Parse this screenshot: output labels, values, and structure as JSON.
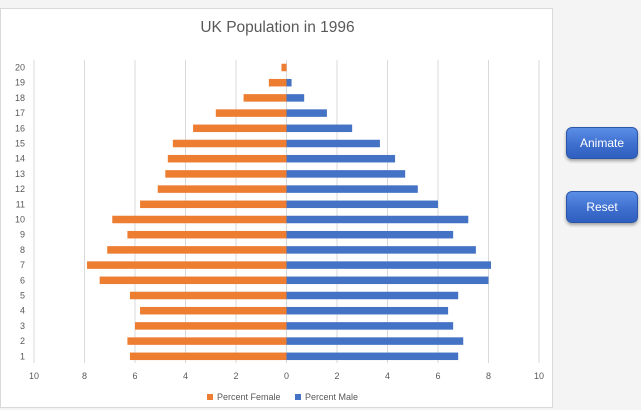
{
  "buttons": {
    "animate_label": "Animate",
    "reset_label": "Reset"
  },
  "colors": {
    "female": "#ed7d31",
    "male": "#4472c4",
    "grid": "#d9d9d9",
    "text": "#595959"
  },
  "chart_data": {
    "type": "bar",
    "orientation": "horizontal",
    "title": "UK Population in 1996",
    "categories": [
      "1",
      "2",
      "3",
      "4",
      "5",
      "6",
      "7",
      "8",
      "9",
      "10",
      "11",
      "12",
      "13",
      "14",
      "15",
      "16",
      "17",
      "18",
      "19",
      "20"
    ],
    "series": [
      {
        "name": "Percent Female",
        "values": [
          -6.2,
          -6.3,
          -6.0,
          -5.8,
          -6.2,
          -7.4,
          -7.9,
          -7.1,
          -6.3,
          -6.9,
          -5.8,
          -5.1,
          -4.8,
          -4.7,
          -4.5,
          -3.7,
          -2.8,
          -1.7,
          -0.7,
          -0.2
        ]
      },
      {
        "name": "Percent Male",
        "values": [
          6.8,
          7.0,
          6.6,
          6.4,
          6.8,
          8.0,
          8.1,
          7.5,
          6.6,
          7.2,
          6.0,
          5.2,
          4.7,
          4.3,
          3.7,
          2.6,
          1.6,
          0.7,
          0.2,
          0.0
        ]
      }
    ],
    "xlim": [
      -10,
      10
    ],
    "xticks": [
      -10,
      -8,
      -6,
      -4,
      -2,
      0,
      2,
      4,
      6,
      8,
      10
    ],
    "xtick_labels": [
      "10",
      "8",
      "6",
      "4",
      "2",
      "0",
      "2",
      "4",
      "6",
      "8",
      "10"
    ],
    "grid": true,
    "legend_position": "bottom"
  }
}
